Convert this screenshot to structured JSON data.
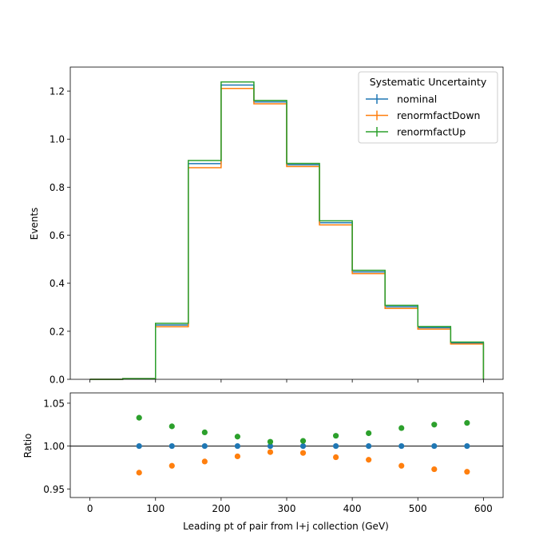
{
  "chart_data": [
    {
      "type": "line",
      "panel": "main",
      "drawstyle": "step",
      "bin_edges": [
        0,
        50,
        100,
        150,
        200,
        250,
        300,
        350,
        400,
        450,
        500,
        550,
        600
      ],
      "xlim": [
        -30,
        630
      ],
      "ylim": [
        0,
        1.3
      ],
      "ylabel": "Events",
      "yticks": [
        "0.0",
        "0.2",
        "0.4",
        "0.6",
        "0.8",
        "1.0",
        "1.2"
      ],
      "legend": {
        "title": "Systematic Uncertainty",
        "placement": "upper right"
      },
      "series": [
        {
          "name": "nominal",
          "color": "#1f77b4",
          "values": [
            0.0,
            0.003,
            0.226,
            0.898,
            1.225,
            1.155,
            0.893,
            0.652,
            0.447,
            0.302,
            0.215,
            0.151
          ]
        },
        {
          "name": "renormfactDown",
          "color": "#ff7f0e",
          "values": [
            0.0,
            0.003,
            0.219,
            0.881,
            1.211,
            1.147,
            0.886,
            0.643,
            0.44,
            0.295,
            0.209,
            0.147
          ]
        },
        {
          "name": "renormfactUp",
          "color": "#2ca02c",
          "values": [
            0.0,
            0.003,
            0.233,
            0.911,
            1.238,
            1.161,
            0.899,
            0.66,
            0.454,
            0.308,
            0.22,
            0.155
          ]
        }
      ]
    },
    {
      "type": "scatter",
      "panel": "ratio",
      "xlim": [
        -30,
        630
      ],
      "ylim": [
        0.94,
        1.062
      ],
      "xlabel": "Leading pt of pair from l+j collection (GeV)",
      "ylabel": "Ratio",
      "xticks": [
        "0",
        "100",
        "200",
        "300",
        "400",
        "500",
        "600"
      ],
      "yticks": [
        "0.95",
        "1.00",
        "1.05"
      ],
      "reference_line": 1.0,
      "x": [
        75,
        125,
        175,
        225,
        275,
        325,
        375,
        425,
        475,
        525,
        575
      ],
      "series": [
        {
          "name": "nominal",
          "color": "#1f77b4",
          "values": [
            1.0,
            1.0,
            1.0,
            1.0,
            1.0,
            1.0,
            1.0,
            1.0,
            1.0,
            1.0,
            1.0
          ]
        },
        {
          "name": "renormfactDown",
          "color": "#ff7f0e",
          "values": [
            0.969,
            0.977,
            0.982,
            0.988,
            0.993,
            0.992,
            0.987,
            0.984,
            0.977,
            0.973,
            0.97
          ]
        },
        {
          "name": "renormfactUp",
          "color": "#2ca02c",
          "values": [
            1.033,
            1.023,
            1.016,
            1.011,
            1.005,
            1.006,
            1.012,
            1.015,
            1.021,
            1.025,
            1.027
          ]
        }
      ]
    }
  ]
}
